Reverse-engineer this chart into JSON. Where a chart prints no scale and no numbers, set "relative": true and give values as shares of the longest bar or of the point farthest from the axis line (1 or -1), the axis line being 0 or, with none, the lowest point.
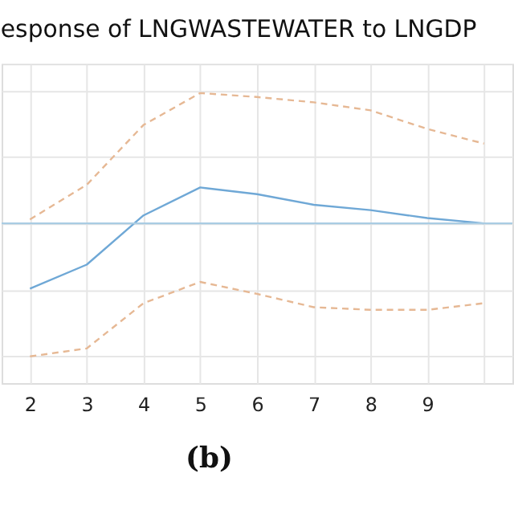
{
  "chart_data": {
    "type": "line",
    "title": "esponse of LNGWASTEWATER to LNGDP",
    "relative": true,
    "grid": true,
    "categories": [
      "2",
      "3",
      "4",
      "5",
      "6",
      "7",
      "8",
      "9",
      null
    ],
    "series": [
      {
        "color": "#6fa8d6",
        "line_style": "solid",
        "values": [
          -0.49,
          -0.31,
          0.06,
          0.27,
          0.22,
          0.14,
          0.1,
          0.04,
          0.0
        ]
      },
      {
        "color": "#e6b894",
        "line_style": "dashed",
        "values": [
          0.03,
          0.29,
          0.74,
          0.98,
          0.95,
          0.91,
          0.85,
          0.71,
          0.6
        ]
      },
      {
        "color": "#e6b894",
        "line_style": "dashed",
        "values": [
          -1.0,
          -0.94,
          -0.6,
          -0.44,
          -0.53,
          -0.63,
          -0.65,
          -0.65,
          -0.6
        ]
      }
    ],
    "ref_lines": [
      {
        "axis": "y",
        "value": 0,
        "color": "#a9cce3"
      }
    ],
    "annotations": [
      "(b)"
    ]
  }
}
